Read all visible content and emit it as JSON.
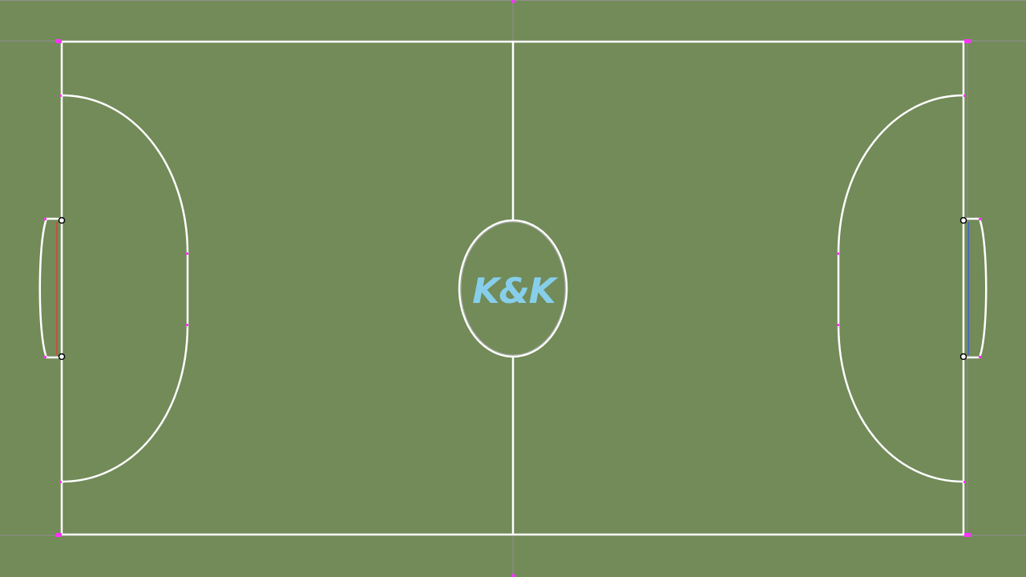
{
  "pitch": {
    "logo_text": "K&K",
    "colors": {
      "grass": "#728b59",
      "line": "#ffffff",
      "logo": "#87ceeb",
      "left_goal_line": "#e0403a",
      "right_goal_line": "#3a5fd0",
      "marker": "#ff33ff",
      "guide": "#8f8f8f",
      "post": "#000000"
    },
    "teams": {
      "left": {
        "goal_color": "#e0403a"
      },
      "right": {
        "goal_color": "#3a5fd0"
      }
    }
  }
}
